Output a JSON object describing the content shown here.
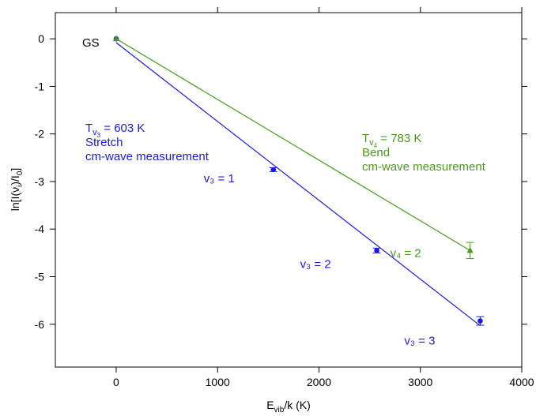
{
  "chart_data": {
    "type": "scatter",
    "xlabel": "E",
    "xlabel_sub": "vib",
    "xlabel_rest": "/k (K)",
    "ylabel": "ln[I(ν",
    "ylabel_sub": "i",
    "ylabel_rest": ")/I",
    "ylabel_sub2": "0",
    "ylabel_end": "]",
    "xlim": [
      -600,
      4000
    ],
    "ylim": [
      -6.9,
      0.55
    ],
    "xticks": [
      0,
      1000,
      2000,
      3000,
      4000
    ],
    "xtick_labels": [
      "0",
      "1000",
      "2000",
      "3000",
      "4000"
    ],
    "yticks": [
      0,
      -1,
      -2,
      -3,
      -4,
      -5,
      -6
    ],
    "ytick_labels": [
      "0",
      "-1",
      "-2",
      "-3",
      "-4",
      "-5",
      "-6"
    ],
    "grid": false,
    "series": [
      {
        "color": "#1a1adf",
        "marker": "circle",
        "points": [
          {
            "x": 0,
            "y": 0
          },
          {
            "x": 1550,
            "y": -2.75,
            "err": 0.04,
            "label": "v₃ = 1"
          },
          {
            "x": 2570,
            "y": -4.45,
            "err": 0.05,
            "label": "v₃ = 2"
          },
          {
            "x": 3590,
            "y": -5.93,
            "err": 0.09,
            "label": "v₃ = 3"
          }
        ],
        "fit_line": {
          "x1": 0,
          "y1": -0.08,
          "x2": 3590,
          "y2": -6.03
        },
        "annotation": {
          "T_prefix": "T",
          "T_sub": "v",
          "T_subsub": "3",
          "T_value": " = 603 K",
          "line2": "Stretch",
          "line3": "cm-wave measurement"
        }
      },
      {
        "color": "#4a9a1a",
        "marker": "triangle",
        "points": [
          {
            "x": 0,
            "y": 0
          },
          {
            "x": 3490,
            "y": -4.45,
            "err": 0.17,
            "label": "v₄ = 2"
          }
        ],
        "fit_line": {
          "x1": 0,
          "y1": 0,
          "x2": 3490,
          "y2": -4.45
        },
        "annotation": {
          "T_prefix": "T",
          "T_sub": "v",
          "T_subsub": "4",
          "T_value": " = 783 K",
          "line2": "Bend",
          "line3": "cm-wave measurement"
        }
      }
    ],
    "gs_label": "GS",
    "gs_color": "#000000"
  }
}
